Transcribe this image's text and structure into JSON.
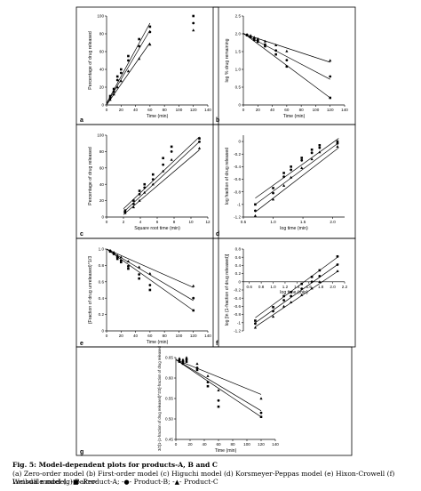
{
  "figure": {
    "caption_title": "Fig. 5: Model-dependent plots for products-A, B and C",
    "caption_models": "(a) Zero-order model (b) First-order model (c) Higuchi model (d) Korsmeyer-Peppas model (e) Hixon-Crowell (f) Weibull model (g) Baker-",
    "caption_models_2": "Lonsdale model.",
    "legend_items": [
      {
        "symbol": "-■-",
        "label": "Product-A;"
      },
      {
        "symbol": "-●-",
        "label": "Product-B;"
      },
      {
        "symbol": "-▲-",
        "label": "Product-C"
      }
    ]
  },
  "chart_data": [
    {
      "panel": "a",
      "type": "scatter",
      "xlabel": "Time (min)",
      "ylabel": "Percentage of drug released",
      "xlim": [
        0,
        140
      ],
      "ylim": [
        0,
        100
      ],
      "xticks": [
        "0",
        "20",
        "40",
        "60",
        "80",
        "100",
        "120",
        "140"
      ],
      "xtick_values": [
        0,
        20,
        40,
        60,
        80,
        100,
        120,
        140
      ],
      "yticks": [
        "0",
        "20",
        "40",
        "60",
        "80",
        "100"
      ],
      "ytick_values": [
        0,
        20,
        40,
        60,
        80,
        100
      ],
      "series": [
        {
          "x": [
            5,
            10,
            15,
            20,
            30,
            45,
            60,
            120
          ],
          "y": [
            10,
            18,
            32,
            40,
            55,
            74,
            88,
            100
          ],
          "marker": "square"
        },
        {
          "x": [
            5,
            10,
            15,
            20,
            30,
            45,
            60,
            120
          ],
          "y": [
            8,
            15,
            28,
            36,
            50,
            66,
            82,
            92
          ],
          "marker": "circle"
        },
        {
          "x": [
            5,
            10,
            15,
            20,
            30,
            45,
            60,
            120
          ],
          "y": [
            6,
            12,
            20,
            27,
            38,
            52,
            68,
            84
          ],
          "marker": "triangle"
        }
      ],
      "fits": [
        [
          [
            0,
            2
          ],
          [
            60,
            92
          ]
        ],
        [
          [
            0,
            1
          ],
          [
            60,
            84
          ]
        ],
        [
          [
            0,
            0
          ],
          [
            60,
            70
          ]
        ]
      ]
    },
    {
      "panel": "b",
      "type": "scatter",
      "xlabel": "Time (min)",
      "ylabel": "log % drug remaining",
      "xlim": [
        0,
        140
      ],
      "ylim": [
        0,
        2.5
      ],
      "xticks": [
        "0",
        "20",
        "40",
        "60",
        "80",
        "100",
        "120",
        "140"
      ],
      "xtick_values": [
        0,
        20,
        40,
        60,
        80,
        100,
        120,
        140
      ],
      "yticks": [
        "0",
        "0.5",
        "1.0",
        "1.5",
        "2.0",
        "2.5"
      ],
      "ytick_values": [
        0,
        0.5,
        1.0,
        1.5,
        2.0,
        2.5
      ],
      "series": [
        {
          "x": [
            5,
            10,
            15,
            20,
            30,
            45,
            60,
            120
          ],
          "y": [
            1.96,
            1.91,
            1.83,
            1.78,
            1.65,
            1.42,
            1.08,
            0.2
          ],
          "marker": "square"
        },
        {
          "x": [
            5,
            10,
            15,
            20,
            30,
            45,
            60,
            120
          ],
          "y": [
            1.97,
            1.93,
            1.86,
            1.81,
            1.7,
            1.53,
            1.26,
            0.8
          ],
          "marker": "circle"
        },
        {
          "x": [
            5,
            10,
            15,
            20,
            30,
            45,
            60,
            120
          ],
          "y": [
            1.98,
            1.95,
            1.9,
            1.86,
            1.79,
            1.68,
            1.51,
            1.25
          ],
          "marker": "triangle"
        }
      ],
      "fits": [
        [
          [
            0,
            2.02
          ],
          [
            120,
            0.2
          ]
        ],
        [
          [
            0,
            2.0
          ],
          [
            120,
            0.72
          ]
        ],
        [
          [
            0,
            2.0
          ],
          [
            120,
            1.2
          ]
        ]
      ]
    },
    {
      "panel": "c",
      "type": "scatter",
      "xlabel": "Square root time (min)",
      "ylabel": "Percentage of drug released",
      "xlim": [
        0,
        12
      ],
      "ylim": [
        0,
        100
      ],
      "xticks": [
        "0",
        "2",
        "4",
        "6",
        "8",
        "10",
        "12"
      ],
      "xtick_values": [
        0,
        2,
        4,
        6,
        8,
        10,
        12
      ],
      "yticks": [
        "0",
        "20",
        "40",
        "60",
        "80",
        "100"
      ],
      "ytick_values": [
        0,
        20,
        40,
        60,
        80,
        100
      ],
      "series": [
        {
          "x": [
            2.2,
            3.2,
            3.9,
            4.5,
            5.5,
            6.7,
            7.7,
            11
          ],
          "y": [
            8,
            20,
            32,
            40,
            52,
            72,
            86,
            96
          ],
          "marker": "square"
        },
        {
          "x": [
            2.2,
            3.2,
            3.9,
            4.5,
            5.5,
            6.7,
            7.7,
            11
          ],
          "y": [
            6,
            16,
            28,
            36,
            46,
            64,
            80,
            92
          ],
          "marker": "circle"
        },
        {
          "x": [
            2.2,
            3.2,
            3.9,
            4.5,
            5.5,
            6.7,
            7.7,
            11
          ],
          "y": [
            5,
            12,
            20,
            30,
            40,
            56,
            70,
            84
          ],
          "marker": "triangle"
        }
      ],
      "fits": [
        [
          [
            2,
            10
          ],
          [
            11,
            98
          ]
        ],
        [
          [
            2,
            6
          ],
          [
            11,
            92
          ]
        ],
        [
          [
            2,
            3
          ],
          [
            11,
            82
          ]
        ]
      ]
    },
    {
      "panel": "d",
      "type": "scatter",
      "xlabel": "log time (min)",
      "ylabel": "log fraction of drug released",
      "xlim": [
        0.5,
        2.2
      ],
      "ylim": [
        -1.2,
        0.1
      ],
      "xticks": [
        "0.5",
        "1.0",
        "1.5",
        "2.0"
      ],
      "xtick_values": [
        0.5,
        1.0,
        1.5,
        2.0
      ],
      "yticks": [
        "-1.2",
        "-1",
        "-0.8",
        "-0.6",
        "-0.4",
        "-0.2",
        "0"
      ],
      "ytick_values": [
        -1.2,
        -1.0,
        -0.8,
        -0.6,
        -0.4,
        -0.2,
        0
      ],
      "series": [
        {
          "x": [
            0.7,
            1.0,
            1.18,
            1.3,
            1.48,
            1.65,
            1.78,
            2.08
          ],
          "y": [
            -1.0,
            -0.74,
            -0.5,
            -0.4,
            -0.26,
            -0.13,
            -0.06,
            0.0
          ],
          "marker": "square"
        },
        {
          "x": [
            0.7,
            1.0,
            1.18,
            1.3,
            1.48,
            1.65,
            1.78,
            2.08
          ],
          "y": [
            -1.1,
            -0.82,
            -0.56,
            -0.45,
            -0.3,
            -0.18,
            -0.1,
            -0.03
          ],
          "marker": "circle"
        },
        {
          "x": [
            0.7,
            1.0,
            1.18,
            1.3,
            1.48,
            1.65,
            1.78,
            2.08
          ],
          "y": [
            -1.18,
            -0.92,
            -0.7,
            -0.57,
            -0.42,
            -0.28,
            -0.17,
            -0.08
          ],
          "marker": "triangle"
        }
      ],
      "fits": [
        [
          [
            0.7,
            -0.9
          ],
          [
            2.1,
            0.05
          ]
        ],
        [
          [
            0.7,
            -1.0
          ],
          [
            2.1,
            -0.02
          ]
        ],
        [
          [
            0.7,
            -1.12
          ],
          [
            2.1,
            -0.1
          ]
        ]
      ]
    },
    {
      "panel": "e",
      "type": "scatter",
      "xlabel": "Time (min)",
      "ylabel": "(Fraction of drug unreleased)^1/3",
      "xlim": [
        0,
        140
      ],
      "ylim": [
        0,
        1.0
      ],
      "xticks": [
        "0",
        "20",
        "40",
        "60",
        "80",
        "100",
        "120",
        "140"
      ],
      "xtick_values": [
        0,
        20,
        40,
        60,
        80,
        100,
        120,
        140
      ],
      "yticks": [
        "0",
        "0.2",
        "0.4",
        "0.6",
        "0.8",
        "1.0"
      ],
      "ytick_values": [
        0,
        0.2,
        0.4,
        0.6,
        0.8,
        1.0
      ],
      "series": [
        {
          "x": [
            5,
            10,
            15,
            20,
            30,
            45,
            60,
            120
          ],
          "y": [
            0.97,
            0.94,
            0.88,
            0.84,
            0.76,
            0.64,
            0.5,
            0.25
          ],
          "marker": "square"
        },
        {
          "x": [
            5,
            10,
            15,
            20,
            30,
            45,
            60,
            120
          ],
          "y": [
            0.98,
            0.95,
            0.9,
            0.86,
            0.79,
            0.69,
            0.56,
            0.4
          ],
          "marker": "circle"
        },
        {
          "x": [
            5,
            10,
            15,
            20,
            30,
            45,
            60,
            120
          ],
          "y": [
            0.98,
            0.96,
            0.92,
            0.9,
            0.85,
            0.78,
            0.7,
            0.55
          ],
          "marker": "triangle"
        }
      ],
      "fits": [
        [
          [
            0,
            1.0
          ],
          [
            120,
            0.25
          ]
        ],
        [
          [
            0,
            1.0
          ],
          [
            120,
            0.37
          ]
        ],
        [
          [
            0,
            1.0
          ],
          [
            120,
            0.53
          ]
        ]
      ]
    },
    {
      "panel": "f",
      "type": "scatter",
      "xlabel": "log time (min)",
      "ylabel": "log [ln (1-fraction of drug released)]",
      "xlim": [
        0.5,
        2.2
      ],
      "ylim": [
        -1.2,
        0.8
      ],
      "xticks": [
        "0.6",
        "0.8",
        "1.0",
        "1.2",
        "1.4",
        "1.6",
        "1.8",
        "2.0",
        "2.2"
      ],
      "xtick_values": [
        0.6,
        0.8,
        1.0,
        1.2,
        1.4,
        1.6,
        1.8,
        2.0,
        2.2
      ],
      "yticks": [
        "-1.2",
        "-1",
        "-0.8",
        "-0.6",
        "-0.4",
        "-0.2",
        "0",
        "0.2",
        "0.4",
        "0.6",
        "0.8"
      ],
      "ytick_values": [
        -1.2,
        -1.0,
        -0.8,
        -0.6,
        -0.4,
        -0.2,
        0,
        0.2,
        0.4,
        0.6,
        0.8
      ],
      "series": [
        {
          "x": [
            0.7,
            1.0,
            1.18,
            1.3,
            1.48,
            1.65,
            1.78,
            2.08
          ],
          "y": [
            -0.95,
            -0.62,
            -0.35,
            -0.25,
            -0.05,
            0.12,
            0.28,
            0.62
          ],
          "marker": "square"
        },
        {
          "x": [
            0.7,
            1.0,
            1.18,
            1.3,
            1.48,
            1.65,
            1.78,
            2.08
          ],
          "y": [
            -1.02,
            -0.72,
            -0.45,
            -0.35,
            -0.17,
            0.0,
            0.14,
            0.42
          ],
          "marker": "circle"
        },
        {
          "x": [
            0.7,
            1.0,
            1.18,
            1.3,
            1.48,
            1.65,
            1.78,
            2.08
          ],
          "y": [
            -1.12,
            -0.85,
            -0.6,
            -0.5,
            -0.32,
            -0.16,
            0.0,
            0.26
          ],
          "marker": "triangle"
        }
      ],
      "fits": [
        [
          [
            0.7,
            -0.88
          ],
          [
            2.1,
            0.62
          ]
        ],
        [
          [
            0.7,
            -1.0
          ],
          [
            2.1,
            0.44
          ]
        ],
        [
          [
            0.7,
            -1.1
          ],
          [
            2.1,
            0.27
          ]
        ]
      ]
    },
    {
      "panel": "g",
      "type": "scatter",
      "xlabel": "Time (min)",
      "ylabel": "3/2[1-(1-fraction of drug released)^2/3]-fraction of drug released",
      "xlim": [
        0,
        140
      ],
      "ylim": [
        0.45,
        0.65
      ],
      "xticks": [
        "0",
        "20",
        "40",
        "60",
        "80",
        "100",
        "120",
        "140"
      ],
      "xtick_values": [
        0,
        20,
        40,
        60,
        80,
        100,
        120,
        140
      ],
      "yticks": [
        "0.45",
        "0.50",
        "0.55",
        "0.60",
        "0.65"
      ],
      "ytick_values": [
        0.45,
        0.5,
        0.55,
        0.6,
        0.65
      ],
      "series": [
        {
          "x": [
            5,
            10,
            15,
            30,
            45,
            60,
            120
          ],
          "y": [
            0.64,
            0.635,
            0.64,
            0.62,
            0.58,
            0.53,
            0.505
          ],
          "marker": "square"
        },
        {
          "x": [
            5,
            10,
            15,
            30,
            45,
            60,
            120
          ],
          "y": [
            0.645,
            0.64,
            0.645,
            0.625,
            0.59,
            0.545,
            0.515
          ],
          "marker": "circle"
        },
        {
          "x": [
            5,
            10,
            15,
            30,
            45,
            60,
            120
          ],
          "y": [
            0.648,
            0.645,
            0.65,
            0.635,
            0.605,
            0.57,
            0.55
          ],
          "marker": "triangle"
        }
      ],
      "fits": [
        [
          [
            0,
            0.645
          ],
          [
            120,
            0.505
          ]
        ],
        [
          [
            0,
            0.645
          ],
          [
            120,
            0.52
          ]
        ],
        [
          [
            0,
            0.645
          ],
          [
            120,
            0.56
          ]
        ]
      ]
    }
  ]
}
